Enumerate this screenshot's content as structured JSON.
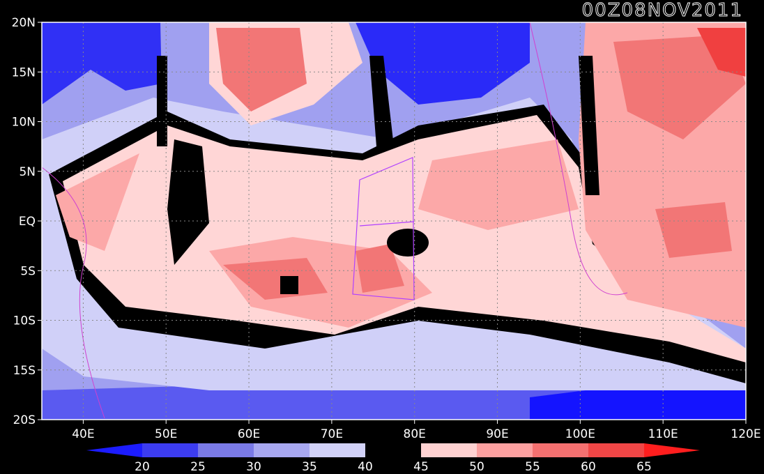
{
  "title": "00Z08NOV2011",
  "lat_labels": [
    "20N",
    "15N",
    "10N",
    "5N",
    "EQ",
    "5S",
    "10S",
    "15S",
    "20S"
  ],
  "lon_labels": [
    "40E",
    "50E",
    "60E",
    "70E",
    "80E",
    "90E",
    "100E",
    "110E",
    "120E"
  ],
  "colorbar": {
    "labels": [
      "20",
      "25",
      "30",
      "35",
      "40",
      "45",
      "50",
      "55",
      "60",
      "65"
    ],
    "colors": [
      "#1c1cff",
      "#3c3cf0",
      "#7a7ae6",
      "#a8a8f0",
      "#d2d2f8",
      "#000000",
      "#ffd2d2",
      "#fca0a0",
      "#f47070",
      "#f04646",
      "#ff1e1e"
    ]
  },
  "colors": {
    "deep_blue": "#1414ff",
    "blue": "#5a5af0",
    "light_blue": "#a0a0f0",
    "pale_blue": "#d0d0f8",
    "black": "#000000",
    "pale_red": "#ffd6d6",
    "light_red": "#fca8a8",
    "red": "#f27676",
    "deep_red": "#f04040",
    "coast": "#d040d0",
    "box": "#b040ff"
  }
}
